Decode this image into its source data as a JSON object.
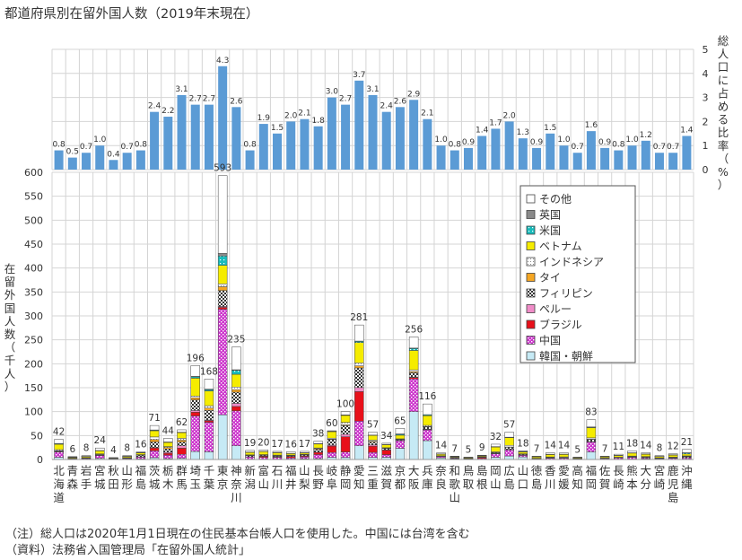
{
  "title": "都道府県別在留外国人数（2019年末現在）",
  "notes": {
    "note": "（注）総人口は2020年1月1日現在の住民基本台帳人口を使用した。中国には台湾を含む",
    "source": "（資料）法務省入国管理局「在留外国人統計」"
  },
  "colors": {
    "ratio_bar": "#5b9bd5",
    "korea": "#c6eaf5",
    "china": "#cc33cc",
    "brazil": "#e8101a",
    "peru": "#f08cc8",
    "philippines": "#333333",
    "thai": "#f5a623",
    "indonesia": "#8c8c8c",
    "vietnam": "#f5ec00",
    "usa": "#18bcbc",
    "uk": "#8a8a8a",
    "other": "#ffffff"
  },
  "chart_data": [
    {
      "type": "bar",
      "ylabel": "総人口に占める比率（%）",
      "ylim": [
        0,
        5
      ],
      "yticks": [
        0,
        1,
        2,
        3,
        4,
        5
      ],
      "categories": [
        "北海道",
        "青森",
        "岩手",
        "宮城",
        "秋田",
        "山形",
        "福島",
        "茨城",
        "栃木",
        "群馬",
        "埼玉",
        "千葉",
        "東京",
        "神奈川",
        "新潟",
        "富山",
        "石川",
        "福井",
        "山梨",
        "長野",
        "岐阜",
        "静岡",
        "愛知",
        "三重",
        "滋賀",
        "京都",
        "大阪",
        "兵庫",
        "奈良",
        "和歌山",
        "鳥取",
        "島根",
        "岡山",
        "広島",
        "山口",
        "徳島",
        "香川",
        "愛媛",
        "高知",
        "福岡",
        "佐賀",
        "長崎",
        "熊本",
        "大分",
        "宮崎",
        "鹿児島",
        "沖縄"
      ],
      "values": [
        0.8,
        0.5,
        0.7,
        1.0,
        0.4,
        0.7,
        0.8,
        2.4,
        2.2,
        3.1,
        2.7,
        2.7,
        4.3,
        2.6,
        0.8,
        1.9,
        1.5,
        2.0,
        2.1,
        1.8,
        3.0,
        2.7,
        3.7,
        3.1,
        2.4,
        2.6,
        2.9,
        2.1,
        1.0,
        0.8,
        0.9,
        1.4,
        1.7,
        2.0,
        1.3,
        0.9,
        1.5,
        1.0,
        0.7,
        1.6,
        0.9,
        0.8,
        1.0,
        1.2,
        0.7,
        0.7,
        1.4
      ]
    },
    {
      "type": "bar",
      "stacked": true,
      "ylabel": "在留外国人数（千人）",
      "ylim": [
        0,
        600
      ],
      "yticks": [
        0,
        50,
        100,
        150,
        200,
        250,
        300,
        350,
        400,
        450,
        500,
        550,
        600
      ],
      "legend_position": "right",
      "categories": [
        "北海道",
        "青森",
        "岩手",
        "宮城",
        "秋田",
        "山形",
        "福島",
        "茨城",
        "栃木",
        "群馬",
        "埼玉",
        "千葉",
        "東京",
        "神奈川",
        "新潟",
        "富山",
        "石川",
        "福井",
        "山梨",
        "長野",
        "岐阜",
        "静岡",
        "愛知",
        "三重",
        "滋賀",
        "京都",
        "大阪",
        "兵庫",
        "奈良",
        "和歌山",
        "鳥取",
        "島根",
        "岡山",
        "広島",
        "山口",
        "徳島",
        "香川",
        "愛媛",
        "高知",
        "福岡",
        "佐賀",
        "長崎",
        "熊本",
        "大分",
        "宮崎",
        "鹿児島",
        "沖縄"
      ],
      "totals": [
        42,
        6,
        8,
        24,
        4,
        8,
        16,
        71,
        44,
        62,
        196,
        168,
        593,
        235,
        19,
        20,
        17,
        16,
        17,
        38,
        60,
        100,
        281,
        57,
        34,
        65,
        256,
        116,
        14,
        7,
        5,
        9,
        32,
        57,
        18,
        7,
        14,
        14,
        5,
        83,
        7,
        11,
        18,
        14,
        8,
        12,
        21
      ],
      "series": [
        {
          "name": "韓国・朝鮮",
          "key": "korea",
          "values": [
            4.6,
            0.7,
            0.7,
            2.2,
            0.4,
            0.7,
            1.2,
            3.8,
            1.8,
            2.3,
            16.7,
            16.0,
            93.3,
            28.6,
            0.8,
            0.8,
            0.8,
            0.8,
            1.5,
            1.8,
            4.4,
            4.1,
            28.7,
            4.3,
            4.6,
            23.3,
            99.9,
            39.4,
            3.3,
            1.4,
            0.7,
            0.7,
            4.6,
            7.3,
            5.5,
            0.2,
            0.4,
            0.4,
            0.2,
            15.8,
            0.5,
            0.7,
            0.8,
            1.2,
            0.4,
            0.5,
            0.8
          ]
        },
        {
          "name": "中国",
          "key": "china",
          "values": [
            11.5,
            1.0,
            1.3,
            6.5,
            0.9,
            1.5,
            3.9,
            14.3,
            7.4,
            8.5,
            74.3,
            61.7,
            220.7,
            73.0,
            4.6,
            3.6,
            3.6,
            2.6,
            4.1,
            8.5,
            10.2,
            11.6,
            51.5,
            10.5,
            5.5,
            16.3,
            68.4,
            22.5,
            2.8,
            1.6,
            1.1,
            1.5,
            7.1,
            12.7,
            3.6,
            1.4,
            2.4,
            2.3,
            0.9,
            21.0,
            1.4,
            2.5,
            3.7,
            2.5,
            1.2,
            1.8,
            3.4
          ]
        },
        {
          "name": "ブラジル",
          "key": "brazil",
          "values": [
            0.1,
            0.0,
            0.0,
            0.1,
            0.0,
            0.1,
            0.4,
            6.0,
            3.9,
            12.9,
            7.8,
            3.2,
            3.9,
            9.2,
            0.3,
            2.5,
            1.4,
            3.1,
            1.9,
            4.9,
            13.5,
            31.8,
            61.7,
            13.1,
            9.3,
            0.4,
            2.8,
            0.9,
            0.3,
            0.0,
            0.1,
            2.0,
            0.7,
            0.8,
            0.1,
            0.0,
            0.1,
            0.0,
            0.0,
            0.4,
            0.0,
            0.0,
            0.1,
            0.1,
            0.0,
            0.0,
            0.1
          ]
        },
        {
          "name": "ペルー",
          "key": "peru",
          "values": [
            0.0,
            0.0,
            0.0,
            0.0,
            0.0,
            0.0,
            0.1,
            1.1,
            2.2,
            5.0,
            3.6,
            1.6,
            1.8,
            6.5,
            0.0,
            0.2,
            0.1,
            0.1,
            0.4,
            0.3,
            2.0,
            5.2,
            8.4,
            2.5,
            1.0,
            0.1,
            1.2,
            0.6,
            0.1,
            0.0,
            0.0,
            0.0,
            0.2,
            0.4,
            0.0,
            0.0,
            0.0,
            0.0,
            0.0,
            0.2,
            0.0,
            0.0,
            0.0,
            0.0,
            0.0,
            0.0,
            0.1
          ]
        },
        {
          "name": "フィリピン",
          "key": "philippines",
          "values": [
            1.7,
            0.6,
            0.9,
            1.4,
            0.5,
            1.2,
            3.3,
            11.5,
            6.7,
            7.9,
            22.1,
            20.0,
            33.3,
            23.3,
            2.6,
            1.8,
            1.7,
            1.6,
            2.0,
            5.5,
            11.5,
            18.0,
            41.0,
            5.8,
            2.6,
            1.5,
            8.9,
            4.5,
            0.7,
            0.5,
            0.4,
            1.0,
            1.6,
            4.4,
            1.6,
            0.5,
            1.3,
            1.2,
            0.6,
            4.3,
            0.6,
            0.9,
            1.2,
            1.2,
            1.2,
            1.4,
            1.9
          ]
        },
        {
          "name": "タイ",
          "key": "thai",
          "values": [
            0.3,
            0.1,
            0.1,
            0.3,
            0.1,
            0.1,
            0.4,
            4.8,
            3.0,
            3.7,
            4.4,
            4.9,
            8.0,
            5.2,
            0.4,
            0.3,
            0.3,
            0.2,
            0.6,
            1.7,
            1.1,
            1.6,
            4.4,
            1.6,
            0.7,
            0.8,
            2.5,
            1.0,
            0.2,
            0.1,
            0.1,
            0.1,
            0.4,
            0.6,
            0.2,
            0.1,
            0.2,
            0.1,
            0.1,
            0.7,
            0.1,
            0.1,
            0.2,
            0.2,
            0.1,
            0.2,
            0.3
          ]
        },
        {
          "name": "インドネシア",
          "key": "indonesia",
          "values": [
            2.4,
            0.4,
            0.7,
            1.2,
            0.2,
            0.4,
            0.9,
            5.6,
            2.0,
            4.0,
            3.6,
            5.0,
            5.9,
            5.6,
            1.0,
            1.0,
            1.3,
            0.8,
            0.5,
            1.4,
            1.9,
            5.2,
            6.2,
            2.6,
            0.9,
            0.8,
            3.6,
            2.3,
            0.4,
            0.4,
            0.3,
            0.5,
            1.4,
            3.4,
            0.9,
            0.4,
            1.0,
            1.5,
            0.3,
            2.8,
            0.4,
            0.6,
            1.2,
            1.0,
            0.6,
            1.0,
            1.0
          ]
        },
        {
          "name": "ベトナム",
          "key": "vietnam",
          "values": [
            11.3,
            1.9,
            2.3,
            6.4,
            1.1,
            2.5,
            3.9,
            13.0,
            8.7,
            12.0,
            37.4,
            30.9,
            38.7,
            26.6,
            5.3,
            6.5,
            5.1,
            3.4,
            2.7,
            8.2,
            13.7,
            14.6,
            42.4,
            9.9,
            6.5,
            7.6,
            40.5,
            20.2,
            3.5,
            1.8,
            1.6,
            2.0,
            10.4,
            16.0,
            3.9,
            3.2,
            5.2,
            5.3,
            2.0,
            21.3,
            2.8,
            3.6,
            6.4,
            5.0,
            2.8,
            4.6,
            4.0
          ]
        },
        {
          "name": "米国",
          "key": "usa",
          "values": [
            1.3,
            0.2,
            0.4,
            0.6,
            0.2,
            0.2,
            0.4,
            1.3,
            0.7,
            0.6,
            2.9,
            2.8,
            19.6,
            8.4,
            0.4,
            0.2,
            0.4,
            0.2,
            0.4,
            0.6,
            0.5,
            0.9,
            2.6,
            0.6,
            0.4,
            2.0,
            4.1,
            1.9,
            0.3,
            0.2,
            0.1,
            0.2,
            0.4,
            0.8,
            0.8,
            0.1,
            0.3,
            0.3,
            0.1,
            1.2,
            0.1,
            0.3,
            0.3,
            0.3,
            0.2,
            0.3,
            2.3
          ]
        },
        {
          "name": "英国",
          "key": "uk",
          "values": [
            0.3,
            0.1,
            0.1,
            0.1,
            0.0,
            0.0,
            0.1,
            0.3,
            0.2,
            0.1,
            0.8,
            0.9,
            5.6,
            1.1,
            0.1,
            0.0,
            0.1,
            0.0,
            0.1,
            0.3,
            0.1,
            0.2,
            0.5,
            0.1,
            0.1,
            0.6,
            0.9,
            0.4,
            0.0,
            0.0,
            0.0,
            0.0,
            0.1,
            0.2,
            0.1,
            0.0,
            0.1,
            0.1,
            0.0,
            0.3,
            0.0,
            0.0,
            0.1,
            0.1,
            0.0,
            0.1,
            0.2
          ]
        },
        {
          "name": "その他",
          "key": "other",
          "values": [
            8.5,
            1.0,
            1.5,
            5.2,
            0.6,
            1.3,
            1.4,
            9.3,
            7.4,
            5.0,
            22.4,
            21.0,
            162.2,
            47.5,
            3.5,
            3.1,
            2.2,
            3.2,
            2.8,
            4.8,
            1.1,
            6.8,
            33.6,
            6.0,
            2.4,
            11.6,
            23.2,
            22.3,
            2.4,
            1.0,
            0.6,
            1.0,
            5.1,
            10.4,
            1.4,
            1.1,
            3.0,
            2.8,
            0.8,
            15.0,
            1.1,
            2.3,
            4.0,
            2.4,
            1.5,
            2.1,
            7.0
          ]
        }
      ]
    }
  ]
}
